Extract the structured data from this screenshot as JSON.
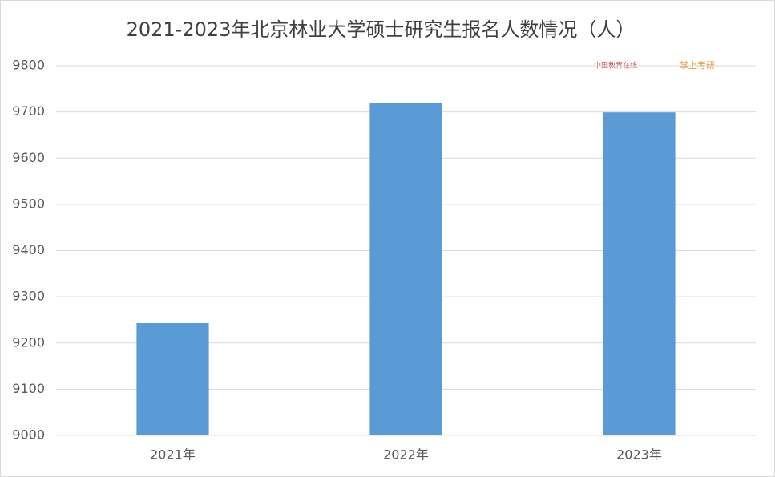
{
  "chart_data": {
    "type": "bar",
    "title": "2021-2023年北京林业大学硕士研究生报名人数情况（人）",
    "categories": [
      "2021年",
      "2022年",
      "2023年"
    ],
    "values": [
      9243,
      9720,
      9699
    ],
    "color": "#5b9bd5",
    "ylim": [
      9000,
      9800
    ],
    "yticks": [
      9000,
      9100,
      9200,
      9300,
      9400,
      9500,
      9600,
      9700,
      9800
    ],
    "grid": true,
    "watermarks": [
      "中国教育在线",
      "掌上考研"
    ]
  }
}
